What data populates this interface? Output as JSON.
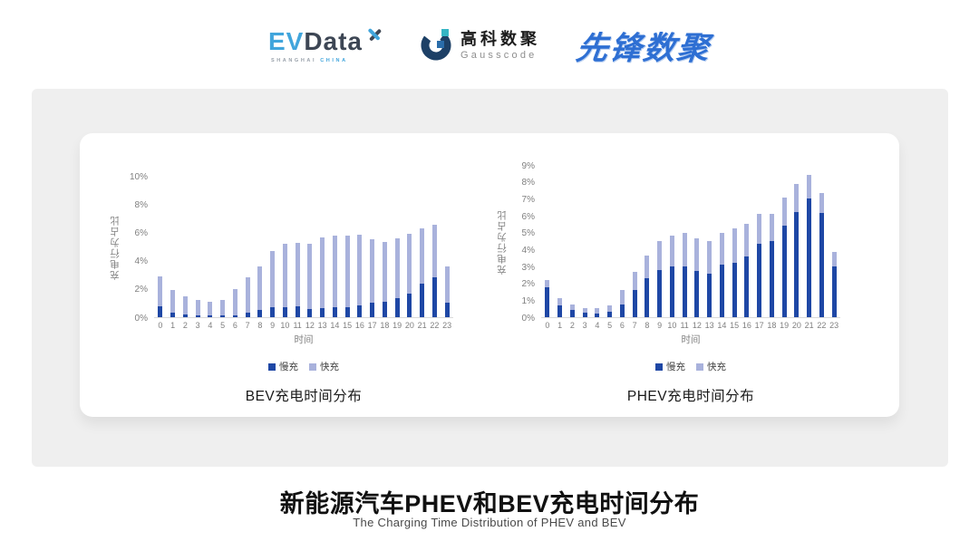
{
  "header": {
    "evdata": {
      "part1": "EV",
      "part2": "Data",
      "sub1": "SHANGHAI",
      "sub2": "CHINA"
    },
    "gausscode": {
      "name_cn": "高科数聚",
      "name_en": "Gausscode"
    },
    "xianfeng": {
      "name": "先锋数聚"
    }
  },
  "footer": {
    "title": "新能源汽车PHEV和BEV充电时间分布",
    "subtitle": "The Charging Time Distribution of PHEV and BEV"
  },
  "colors": {
    "slow_charge": "#1e47a5",
    "fast_charge": "#a9b2dc",
    "axis_text": "#7f7f7f",
    "evdata_blue": "#41a5dc",
    "evdata_dark": "#3d4654",
    "gauss_dark": "#1d4066",
    "gauss_teal": "#35b5c4",
    "xianfeng_blue": "#2e6fd3"
  },
  "chart_data": [
    {
      "type": "bar",
      "stacked": true,
      "title": "BEV充电时间分布",
      "xlabel": "时间",
      "ylabel": "充电行为占比",
      "ylim": [
        0,
        10
      ],
      "yticks": [
        0,
        2,
        4,
        6,
        8,
        10
      ],
      "grid": false,
      "legend_position": "bottom",
      "categories": [
        "0",
        "1",
        "2",
        "3",
        "4",
        "5",
        "6",
        "7",
        "8",
        "9",
        "10",
        "11",
        "12",
        "13",
        "14",
        "15",
        "16",
        "17",
        "18",
        "19",
        "20",
        "21",
        "22",
        "23"
      ],
      "series": [
        {
          "name": "慢充",
          "color": "#1e47a5",
          "values": [
            0.8,
            0.35,
            0.2,
            0.1,
            0.1,
            0.1,
            0.15,
            0.35,
            0.5,
            0.7,
            0.7,
            0.75,
            0.6,
            0.65,
            0.7,
            0.7,
            0.85,
            1.0,
            1.1,
            1.35,
            1.65,
            2.4,
            2.8,
            1.0
          ]
        },
        {
          "name": "快充",
          "color": "#a9b2dc",
          "values": [
            2.1,
            1.6,
            1.3,
            1.1,
            1.0,
            1.1,
            1.85,
            2.5,
            3.1,
            4.0,
            4.5,
            4.5,
            4.6,
            5.0,
            5.1,
            5.1,
            5.0,
            4.5,
            4.2,
            4.25,
            4.25,
            3.9,
            3.75,
            2.6
          ]
        }
      ]
    },
    {
      "type": "bar",
      "stacked": true,
      "title": "PHEV充电时间分布",
      "xlabel": "时间",
      "ylabel": "充电行为占比",
      "ylim": [
        0,
        9
      ],
      "yticks": [
        0,
        1,
        2,
        3,
        4,
        5,
        6,
        7,
        8,
        9
      ],
      "grid": false,
      "legend_position": "bottom",
      "categories": [
        "0",
        "1",
        "2",
        "3",
        "4",
        "5",
        "6",
        "7",
        "8",
        "9",
        "10",
        "11",
        "12",
        "13",
        "14",
        "15",
        "16",
        "17",
        "18",
        "19",
        "20",
        "21",
        "22",
        "23"
      ],
      "series": [
        {
          "name": "慢充",
          "color": "#1e47a5",
          "values": [
            1.75,
            0.7,
            0.45,
            0.25,
            0.2,
            0.3,
            0.75,
            1.6,
            2.3,
            2.8,
            3.0,
            3.0,
            2.75,
            2.6,
            3.1,
            3.2,
            3.6,
            4.35,
            4.5,
            5.4,
            6.2,
            7.0,
            6.15,
            3.0
          ]
        },
        {
          "name": "快充",
          "color": "#a9b2dc",
          "values": [
            0.45,
            0.45,
            0.3,
            0.3,
            0.35,
            0.4,
            0.85,
            1.1,
            1.35,
            1.7,
            1.8,
            2.0,
            1.9,
            1.9,
            1.9,
            2.05,
            1.9,
            1.75,
            1.6,
            1.7,
            1.7,
            1.4,
            1.2,
            0.85
          ]
        }
      ]
    }
  ]
}
